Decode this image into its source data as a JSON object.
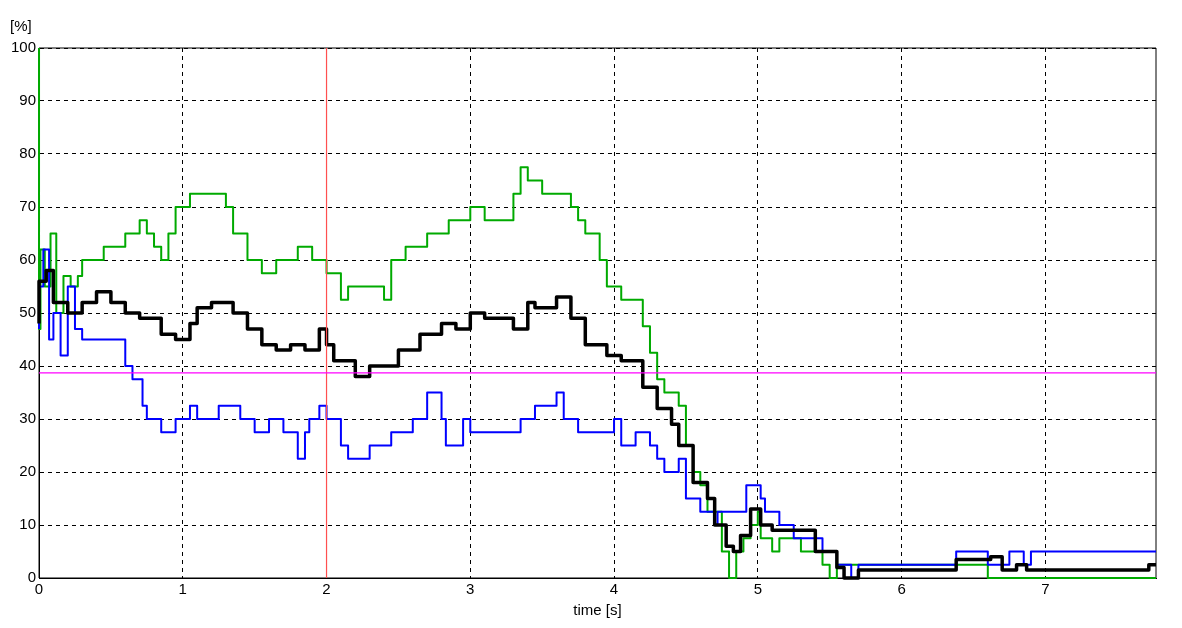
{
  "chart_data": {
    "type": "step",
    "xlabel": "time [s]",
    "ylabel": "[%]",
    "xlim": [
      0,
      7.77
    ],
    "ylim": [
      0,
      100
    ],
    "xticks": [
      0,
      1,
      2,
      3,
      4,
      5,
      6,
      7
    ],
    "yticks": [
      0,
      10,
      20,
      30,
      40,
      50,
      60,
      70,
      80,
      90,
      100
    ],
    "grid": true,
    "legend": false,
    "ref_lines": [
      {
        "axis": "x",
        "value": 2,
        "color": "#ff5050"
      },
      {
        "axis": "y",
        "value": 38.7,
        "color": "#ff00ff"
      }
    ],
    "series": [
      {
        "color": "#00aa00",
        "x": [
          0,
          0.01,
          0.04,
          0.08,
          0.12,
          0.17,
          0.22,
          0.27,
          0.3,
          0.45,
          0.6,
          0.7,
          0.75,
          0.8,
          0.85,
          0.9,
          0.95,
          1.05,
          1.15,
          1.3,
          1.35,
          1.45,
          1.55,
          1.65,
          1.8,
          1.9,
          2.0,
          2.1,
          2.15,
          2.4,
          2.45,
          2.55,
          2.7,
          2.85,
          3.0,
          3.1,
          3.3,
          3.35,
          3.4,
          3.5,
          3.7,
          3.75,
          3.8,
          3.9,
          3.95,
          4.05,
          4.2,
          4.25,
          4.3,
          4.35,
          4.45,
          4.5,
          4.55,
          4.6,
          4.65,
          4.75,
          4.8,
          4.85,
          4.9,
          4.95,
          5.0,
          5.02,
          5.1,
          5.15,
          5.3,
          5.45,
          5.5,
          5.55,
          6.6,
          6.65,
          7.77
        ],
        "values": [
          100,
          47,
          62,
          55,
          65,
          50,
          57,
          55,
          57,
          60,
          62.5,
          65,
          67.5,
          65,
          62.5,
          60,
          65,
          70,
          72.5,
          72.5,
          70,
          65,
          60,
          57.5,
          60,
          62.5,
          60,
          57.5,
          52.5,
          55,
          52.5,
          60,
          62.5,
          65,
          67.5,
          70,
          67.5,
          72.5,
          77.5,
          75,
          72.5,
          70,
          67.5,
          65,
          60,
          55,
          52.5,
          47.5,
          42.5,
          37.5,
          35,
          32.5,
          25,
          20,
          17.5,
          12.5,
          5,
          0,
          5,
          7.5,
          10,
          12.5,
          7.5,
          5,
          7.5,
          5,
          2.5,
          0,
          2.5,
          0,
          0
        ]
      },
      {
        "color": "#0000ff",
        "x": [
          0,
          0.03,
          0.07,
          0.1,
          0.15,
          0.2,
          0.25,
          0.3,
          0.35,
          0.6,
          0.65,
          0.72,
          0.75,
          0.85,
          0.95,
          1.05,
          1.1,
          1.25,
          1.4,
          1.5,
          1.6,
          1.7,
          1.8,
          1.85,
          1.88,
          1.95,
          2.0,
          2.1,
          2.15,
          2.3,
          2.45,
          2.6,
          2.7,
          2.8,
          2.83,
          2.95,
          3.0,
          3.35,
          3.45,
          3.6,
          3.65,
          3.75,
          4.0,
          4.05,
          4.15,
          4.25,
          4.3,
          4.35,
          4.45,
          4.5,
          4.6,
          4.7,
          4.72,
          4.92,
          5.02,
          5.05,
          5.15,
          5.25,
          5.45,
          5.55,
          5.65,
          5.7,
          6.38,
          6.6,
          6.75,
          6.85,
          6.9,
          7.72,
          7.77
        ],
        "values": [
          47,
          55,
          62,
          45,
          50,
          42,
          55,
          47,
          45,
          45,
          40,
          37.5,
          32.5,
          30,
          27.5,
          30,
          32.5,
          30,
          32.5,
          30,
          27.5,
          30,
          27.5,
          22.5,
          27.5,
          30,
          32.5,
          30,
          25,
          22.5,
          25,
          27.5,
          30,
          35,
          30,
          25,
          30,
          27.5,
          30,
          32.5,
          35,
          30,
          27.5,
          30,
          25,
          27.5,
          25,
          22.5,
          20,
          22.5,
          15,
          12.5,
          10,
          12.5,
          17.5,
          15,
          12.5,
          10,
          7.5,
          5,
          2.5,
          0,
          2.5,
          5,
          2.5,
          5,
          2.5,
          5,
          5
        ]
      },
      {
        "color": "#000000",
        "x": [
          0,
          0.05,
          0.1,
          0.2,
          0.3,
          0.4,
          0.5,
          0.6,
          0.7,
          0.85,
          0.95,
          1.05,
          1.1,
          1.2,
          1.35,
          1.45,
          1.55,
          1.65,
          1.75,
          1.85,
          1.95,
          2.0,
          2.05,
          2.2,
          2.3,
          2.4,
          2.5,
          2.65,
          2.8,
          2.9,
          3.0,
          3.1,
          3.3,
          3.4,
          3.45,
          3.6,
          3.7,
          3.8,
          3.95,
          4.05,
          4.2,
          4.3,
          4.4,
          4.45,
          4.55,
          4.65,
          4.7,
          4.78,
          4.83,
          4.88,
          4.95,
          5.02,
          5.1,
          5.2,
          5.4,
          5.55,
          5.6,
          5.7,
          6.38,
          6.62,
          6.7,
          6.8,
          6.87,
          6.9,
          7.72,
          7.77
        ],
        "values": [
          48,
          56,
          58,
          52,
          50,
          52,
          54,
          52,
          50,
          49,
          46,
          45,
          48,
          51,
          52,
          50,
          47,
          44,
          43,
          44,
          43,
          47,
          44,
          41,
          38,
          40,
          40,
          43,
          46,
          48,
          47,
          50,
          49,
          47,
          52,
          51,
          53,
          49,
          44,
          42,
          41,
          36,
          32,
          29,
          25,
          18,
          15,
          10,
          6,
          5,
          8,
          13,
          10,
          9,
          9,
          5,
          2,
          0,
          1.5,
          3.5,
          4,
          1.5,
          2.5,
          1.5,
          1.5,
          2.5
        ]
      }
    ]
  }
}
